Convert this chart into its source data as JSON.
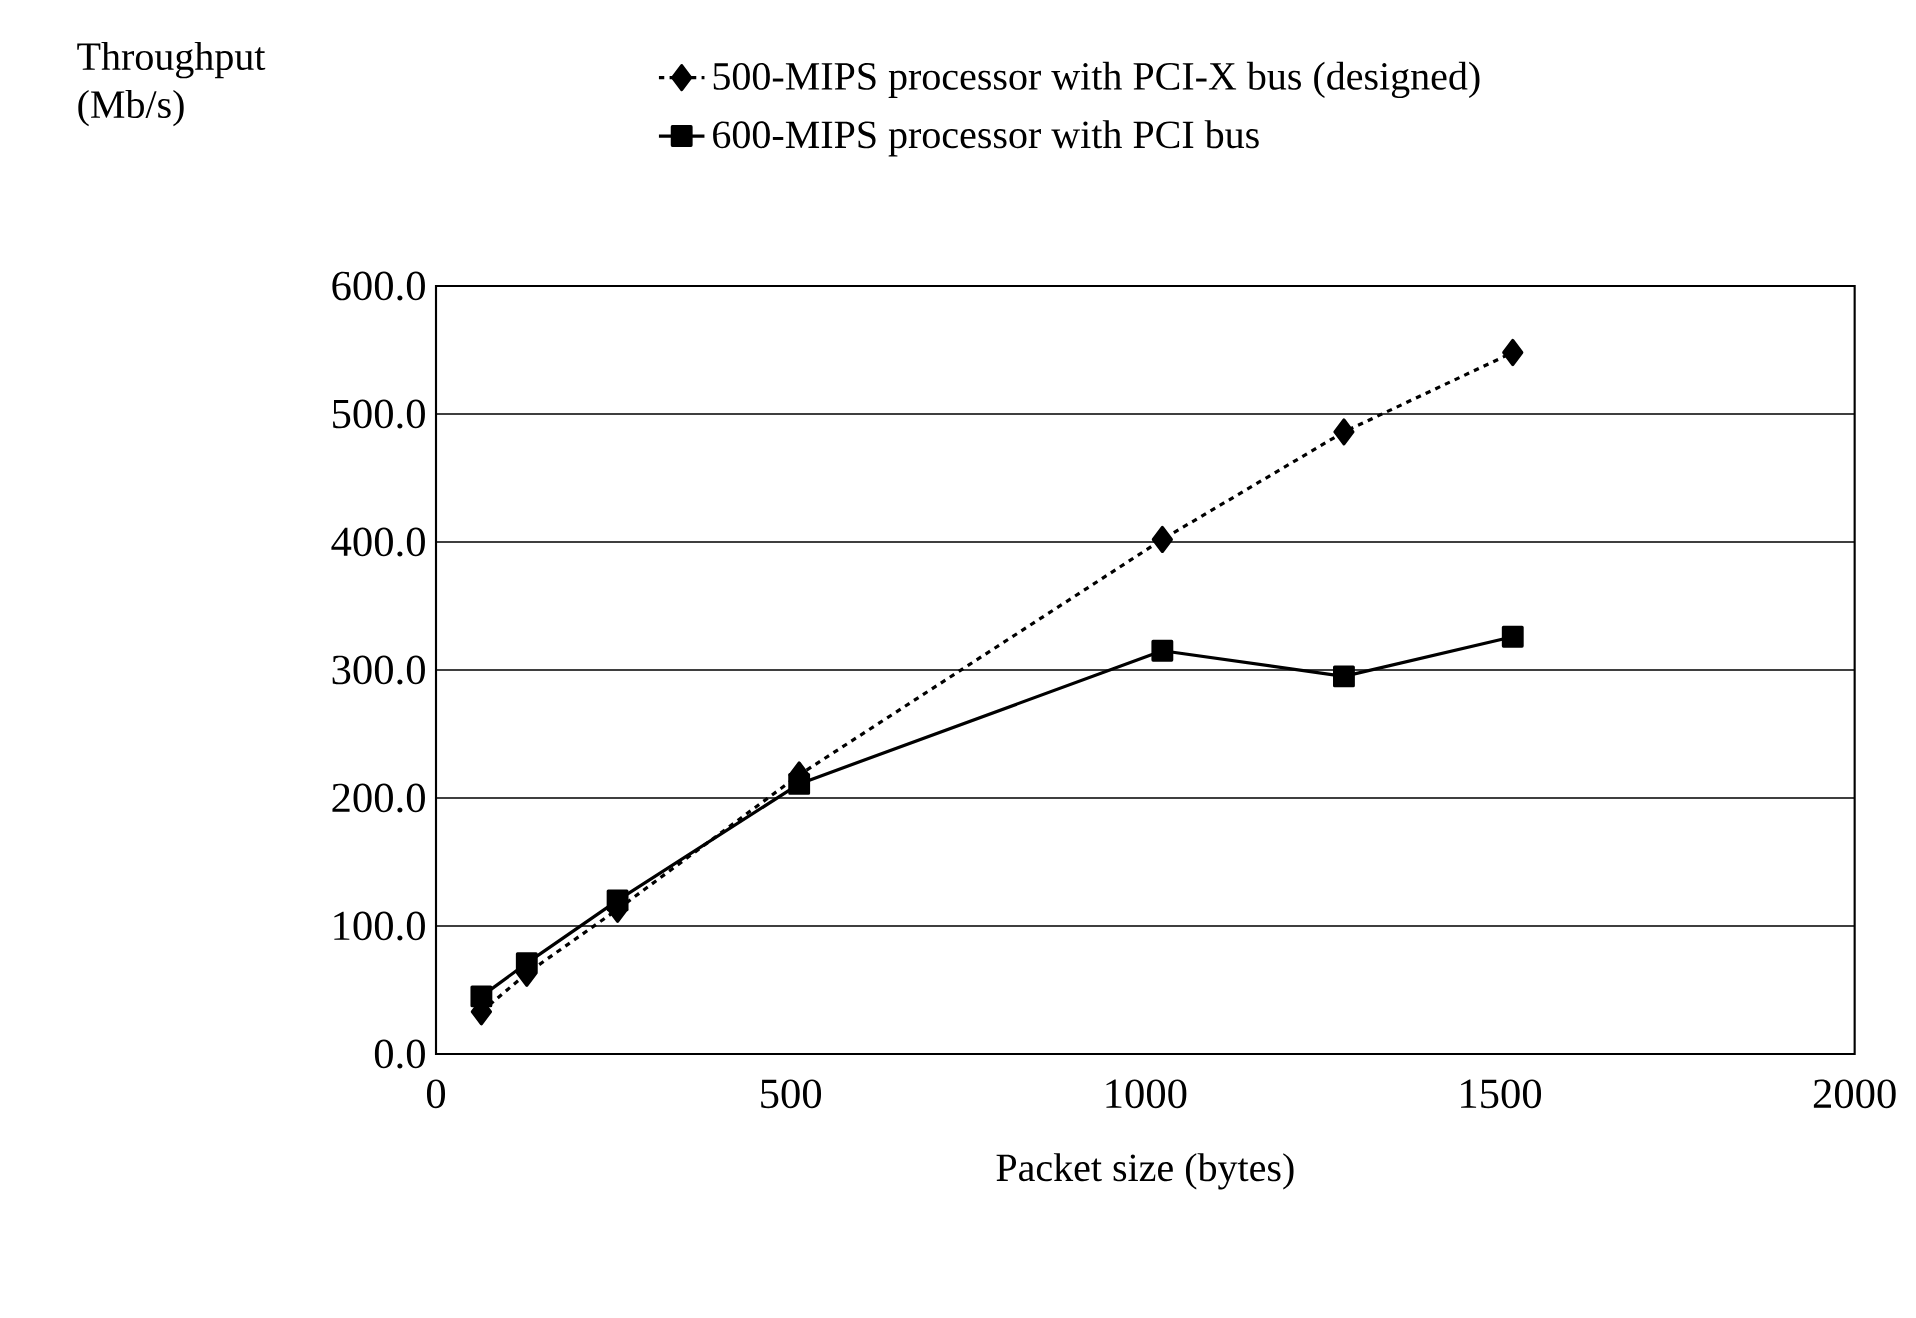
{
  "chart_data": {
    "type": "line",
    "xlabel": "Packet size (bytes)",
    "ylabel": "Throughput (Mb/s)",
    "xlim": [
      0,
      2000
    ],
    "xticks": [
      0,
      500,
      1000,
      1500,
      2000
    ],
    "ylim": [
      0,
      600
    ],
    "yticks": [
      {
        "value": 0,
        "label": "0.0"
      },
      {
        "value": 100,
        "label": "100.0"
      },
      {
        "value": 200,
        "label": "200.0"
      },
      {
        "value": 300,
        "label": "300.0"
      },
      {
        "value": 400,
        "label": "400.0"
      },
      {
        "value": 500,
        "label": "500.0"
      },
      {
        "value": 600,
        "label": "600.0"
      }
    ],
    "grid": "y",
    "legend": "top",
    "series": [
      {
        "name": "500-MIPS processor with PCI-X bus (designed)",
        "color": "#000000",
        "marker": "diamond",
        "line_style": "dotted",
        "x": [
          64,
          128,
          256,
          512,
          1024,
          1280,
          1518
        ],
        "values": [
          33,
          63,
          113,
          218,
          402,
          486,
          548
        ]
      },
      {
        "name": "600-MIPS processor with PCI bus",
        "color": "#000000",
        "marker": "square",
        "line_style": "solid",
        "x": [
          64,
          128,
          256,
          512,
          1024,
          1280,
          1518
        ],
        "values": [
          45,
          71,
          120,
          211,
          315,
          295,
          326
        ]
      }
    ]
  }
}
